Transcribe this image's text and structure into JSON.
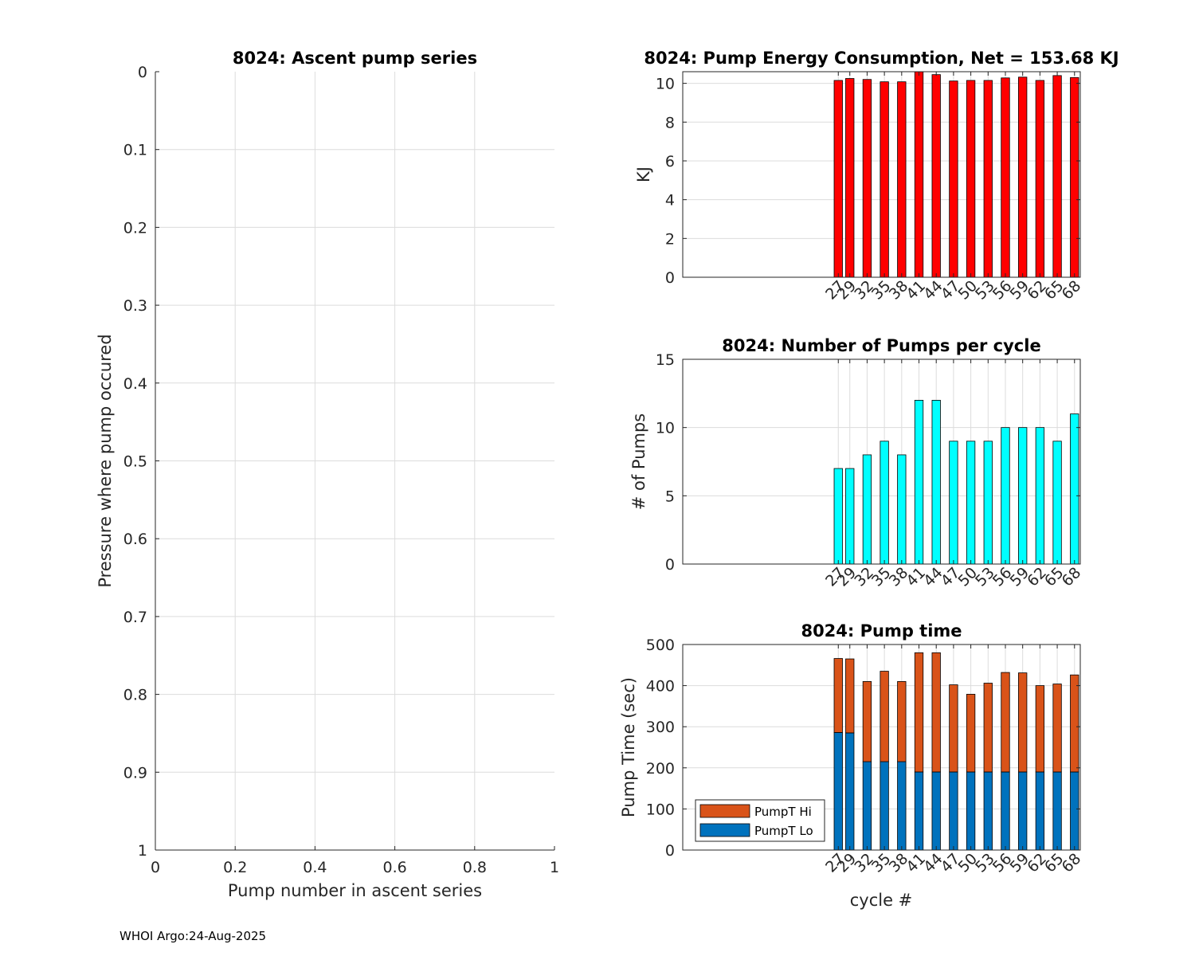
{
  "footer": "WHOI Argo:24-Aug-2025",
  "chart_data": [
    {
      "id": "ascent",
      "type": "scatter",
      "title": "8024: Ascent pump series",
      "xlabel": "Pump number in ascent series",
      "ylabel": "Pressure where pump occured",
      "xlim": [
        0,
        1
      ],
      "ylim": [
        0,
        1
      ],
      "y_reversed": true,
      "grid": true,
      "xticks": [
        "0",
        "0.2",
        "0.4",
        "0.6",
        "0.8",
        "1"
      ],
      "yticks": [
        "0",
        "0.1",
        "0.2",
        "0.3",
        "0.4",
        "0.5",
        "0.6",
        "0.7",
        "0.8",
        "0.9",
        "1"
      ],
      "series": []
    },
    {
      "id": "energy",
      "type": "bar",
      "title": "8024: Pump Energy Consumption,  Net = 153.68 KJ",
      "xlabel": "",
      "ylabel": "KJ",
      "ylim": [
        0,
        10.6
      ],
      "xlim": [
        0,
        69
      ],
      "yticks": [
        "0",
        "2",
        "4",
        "6",
        "8",
        "10"
      ],
      "grid": true,
      "color": "#ff0000",
      "x": [
        27,
        29,
        32,
        35,
        38,
        41,
        44,
        47,
        50,
        53,
        56,
        59,
        62,
        65,
        68
      ],
      "categories": [
        "27",
        "29",
        "32",
        "35",
        "38",
        "41",
        "44",
        "47",
        "50",
        "53",
        "56",
        "59",
        "62",
        "65",
        "68"
      ],
      "values": [
        10.15,
        10.25,
        10.2,
        10.08,
        10.08,
        10.6,
        10.45,
        10.12,
        10.15,
        10.15,
        10.28,
        10.32,
        10.15,
        10.4,
        10.3
      ]
    },
    {
      "id": "pumps",
      "type": "bar",
      "title": "8024: Number of Pumps per cycle",
      "xlabel": "",
      "ylabel": "# of Pumps",
      "ylim": [
        0,
        15
      ],
      "xlim": [
        0,
        69
      ],
      "yticks": [
        "0",
        "5",
        "10",
        "15"
      ],
      "grid": true,
      "color": "#00ffff",
      "x": [
        27,
        29,
        32,
        35,
        38,
        41,
        44,
        47,
        50,
        53,
        56,
        59,
        62,
        65,
        68
      ],
      "categories": [
        "27",
        "29",
        "32",
        "35",
        "38",
        "41",
        "44",
        "47",
        "50",
        "53",
        "56",
        "59",
        "62",
        "65",
        "68"
      ],
      "values": [
        7,
        7,
        8,
        9,
        8,
        12,
        12,
        9,
        9,
        9,
        10,
        10,
        10,
        9,
        11
      ]
    },
    {
      "id": "pumptime",
      "type": "bar",
      "stacked": true,
      "title": "8024: Pump time",
      "xlabel": "cycle #",
      "ylabel": "Pump Time (sec)",
      "ylim": [
        0,
        500
      ],
      "xlim": [
        0,
        69
      ],
      "yticks": [
        "0",
        "100",
        "200",
        "300",
        "400",
        "500"
      ],
      "grid": true,
      "legend_position": "bottom-left",
      "x": [
        27,
        29,
        32,
        35,
        38,
        41,
        44,
        47,
        50,
        53,
        56,
        59,
        62,
        65,
        68
      ],
      "categories": [
        "27",
        "29",
        "32",
        "35",
        "38",
        "41",
        "44",
        "47",
        "50",
        "53",
        "56",
        "59",
        "62",
        "65",
        "68"
      ],
      "series": [
        {
          "name": "PumpT Lo",
          "color": "#0072bd",
          "values": [
            286,
            285,
            215,
            215,
            215,
            190,
            190,
            190,
            190,
            190,
            190,
            190,
            190,
            190,
            190
          ]
        },
        {
          "name": "PumpT Hi",
          "color": "#d95319",
          "values": [
            180,
            180,
            195,
            220,
            195,
            290,
            290,
            212,
            189,
            216,
            242,
            241,
            210,
            214,
            236
          ]
        }
      ]
    }
  ]
}
